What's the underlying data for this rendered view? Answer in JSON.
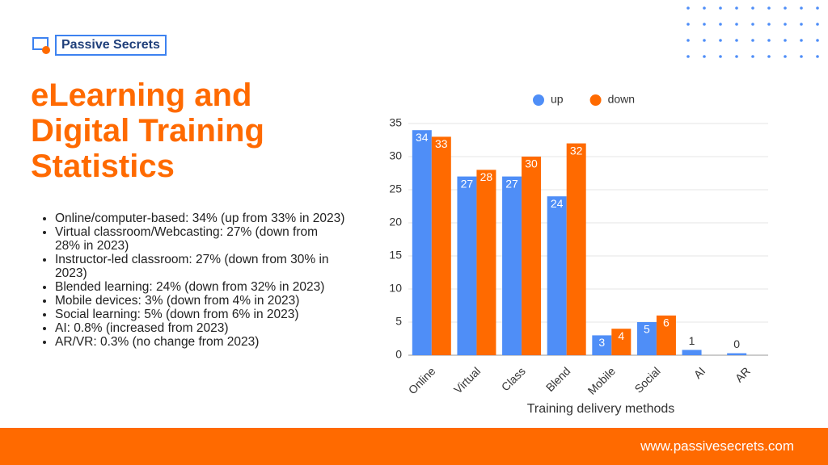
{
  "brand": "Passive Secrets",
  "title": "eLearning and Digital Training Statistics",
  "bullets": [
    "Online/computer-based: 34% (up from 33% in 2023)",
    "Virtual classroom/Webcasting: 27% (down from 28% in 2023)",
    "Instructor-led classroom: 27% (down from 30% in 2023)",
    "Blended learning: 24% (down from 32% in 2023)",
    "Mobile devices: 3% (down from 4% in 2023)",
    "Social learning: 5% (down from 6% in 2023)",
    "AI: 0.8% (increased from 2023)",
    "AR/VR: 0.3% (no change from 2023)"
  ],
  "footer": "www.passivesecrets.com",
  "chart_data": {
    "type": "bar",
    "x_label": "Training delivery methods",
    "categories": [
      "Online",
      "Virtual",
      "Class",
      "Blend",
      "Mobile",
      "Social",
      "AI",
      "AR"
    ],
    "series": [
      {
        "name": "up",
        "color": "#4f8ef7",
        "values": [
          34,
          27,
          27,
          24,
          3,
          5,
          0.8,
          0.3
        ],
        "value_labels": [
          "34",
          "27",
          "27",
          "24",
          "3",
          "5",
          "1",
          "0"
        ]
      },
      {
        "name": "down",
        "color": "#ff6a00",
        "values": [
          33,
          28,
          30,
          32,
          4,
          6,
          null,
          null
        ]
      }
    ],
    "ylim": [
      0,
      35
    ],
    "yticks": [
      0,
      5,
      10,
      15,
      20,
      25,
      30,
      35
    ],
    "grid": true,
    "legend": "top"
  }
}
